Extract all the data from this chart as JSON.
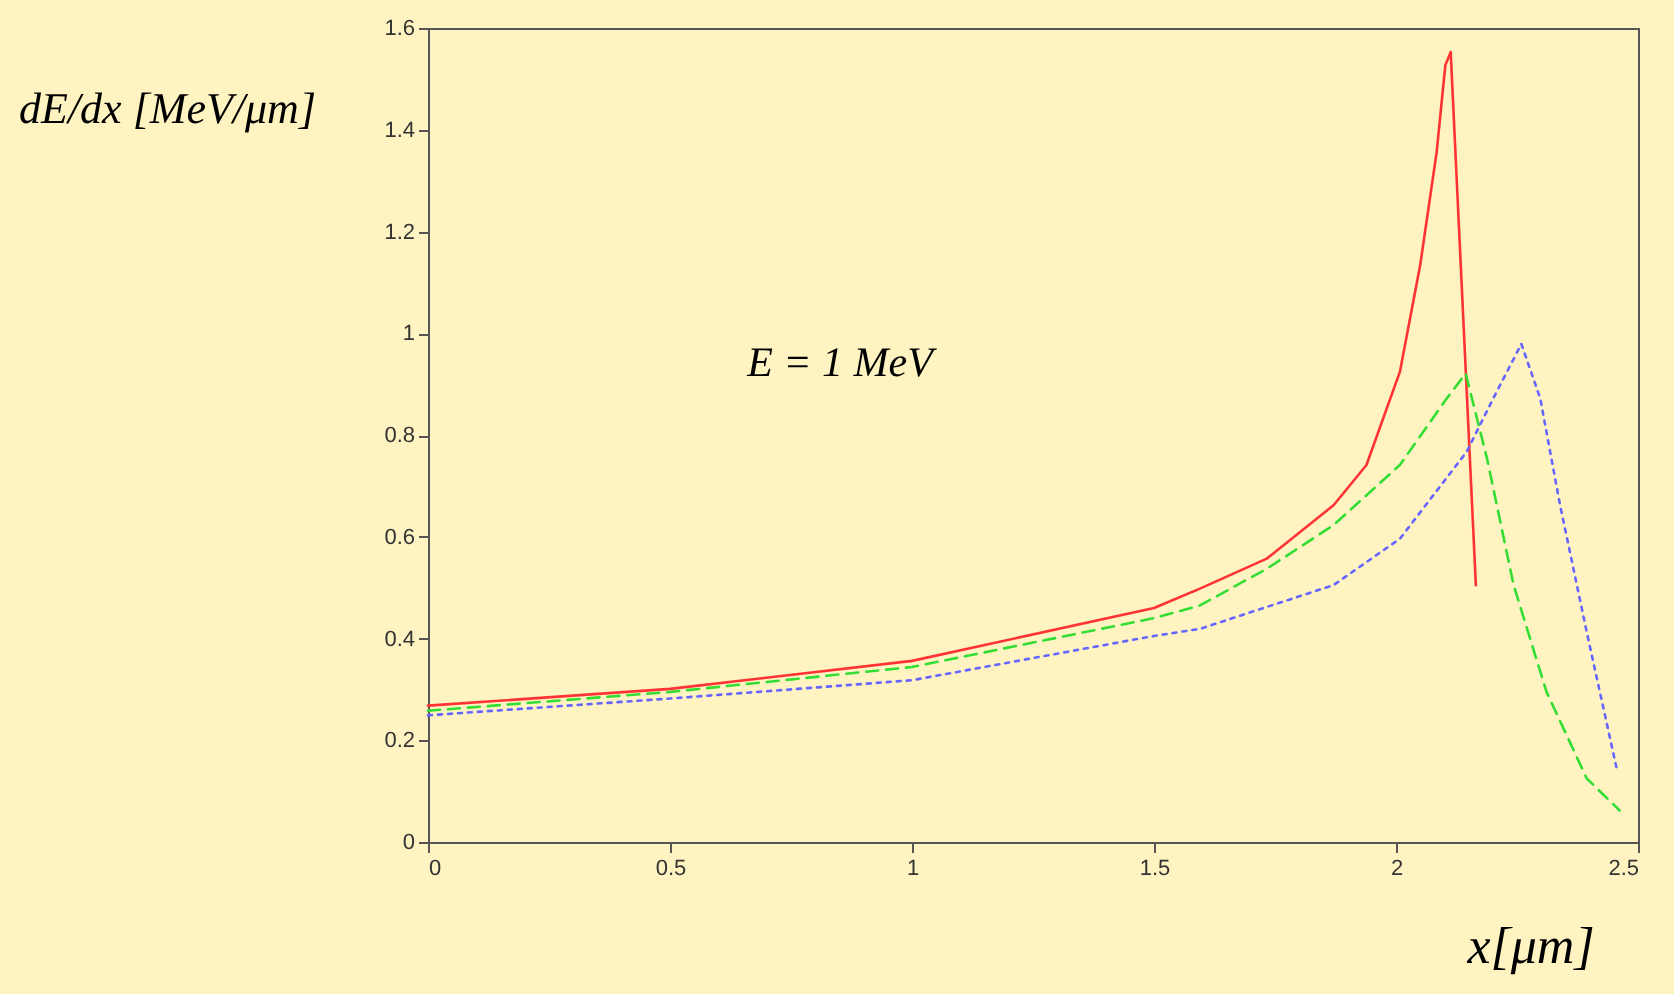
{
  "chart_data": {
    "type": "line",
    "xlabel": "x[μm]",
    "ylabel": "dE/dx [MeV/μm]",
    "annotations": [
      "E = 1 MeV"
    ],
    "xlim": [
      0,
      2.5
    ],
    "xticks": [
      0,
      0.5,
      1,
      1.5,
      2,
      2.5
    ],
    "ylim": [
      0,
      1.6
    ],
    "yticks": [
      0,
      0.2,
      0.4,
      0.6,
      0.8,
      1,
      1.2,
      1.4,
      1.6
    ],
    "grid": false,
    "marker": "none",
    "series": [
      {
        "color": "#ff3333",
        "line_style": "solid",
        "x": [
          0,
          0.5,
          1,
          1.5,
          1.595,
          1.733,
          1.871,
          1.939,
          2.008,
          2.05,
          2.084,
          2.102,
          2.113,
          2.165
        ],
        "values": [
          0.268,
          0.301,
          0.356,
          0.46,
          0.498,
          0.557,
          0.662,
          0.741,
          0.924,
          1.134,
          1.356,
          1.527,
          1.553,
          0.505
        ]
      },
      {
        "color": "#33dd33",
        "line_style": "dashed",
        "x": [
          0,
          0.5,
          1,
          1.5,
          1.595,
          1.733,
          1.871,
          2.008,
          2.105,
          2.144,
          2.188,
          2.243,
          2.311,
          2.394,
          2.462
        ],
        "values": [
          0.258,
          0.295,
          0.344,
          0.44,
          0.465,
          0.537,
          0.623,
          0.741,
          0.872,
          0.921,
          0.754,
          0.505,
          0.295,
          0.125,
          0.062
        ]
      },
      {
        "color": "#6666ff",
        "line_style": "dotted",
        "x": [
          0,
          0.5,
          1,
          1.5,
          1.595,
          1.871,
          2.008,
          2.146,
          2.201,
          2.259,
          2.298,
          2.339,
          2.394,
          2.456
        ],
        "values": [
          0.249,
          0.282,
          0.318,
          0.405,
          0.419,
          0.505,
          0.596,
          0.767,
          0.872,
          0.979,
          0.872,
          0.662,
          0.413,
          0.144
        ]
      }
    ]
  }
}
